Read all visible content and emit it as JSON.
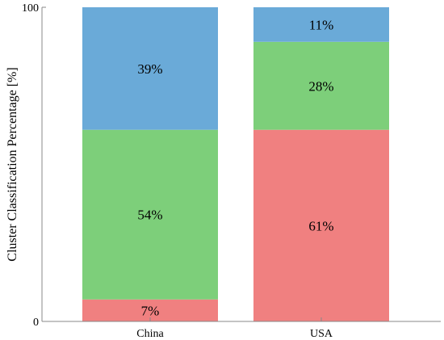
{
  "chart_data": {
    "type": "bar",
    "stacked": true,
    "categories": [
      "China",
      "USA"
    ],
    "series": [
      {
        "color": "#f08080",
        "values": [
          7,
          61
        ],
        "labels": [
          "7%",
          "61%"
        ]
      },
      {
        "color": "#7dcf7a",
        "values": [
          54,
          28
        ],
        "labels": [
          "54%",
          "28%"
        ]
      },
      {
        "color": "#6aaad8",
        "values": [
          39,
          11
        ],
        "labels": [
          "39%",
          "11%"
        ]
      }
    ],
    "title": "",
    "xlabel": "",
    "ylabel": "Cluster Classification Percentage [%]",
    "ylim": [
      0,
      100
    ],
    "yticks": [
      "0",
      "100"
    ],
    "grid": false,
    "legend": "none"
  }
}
